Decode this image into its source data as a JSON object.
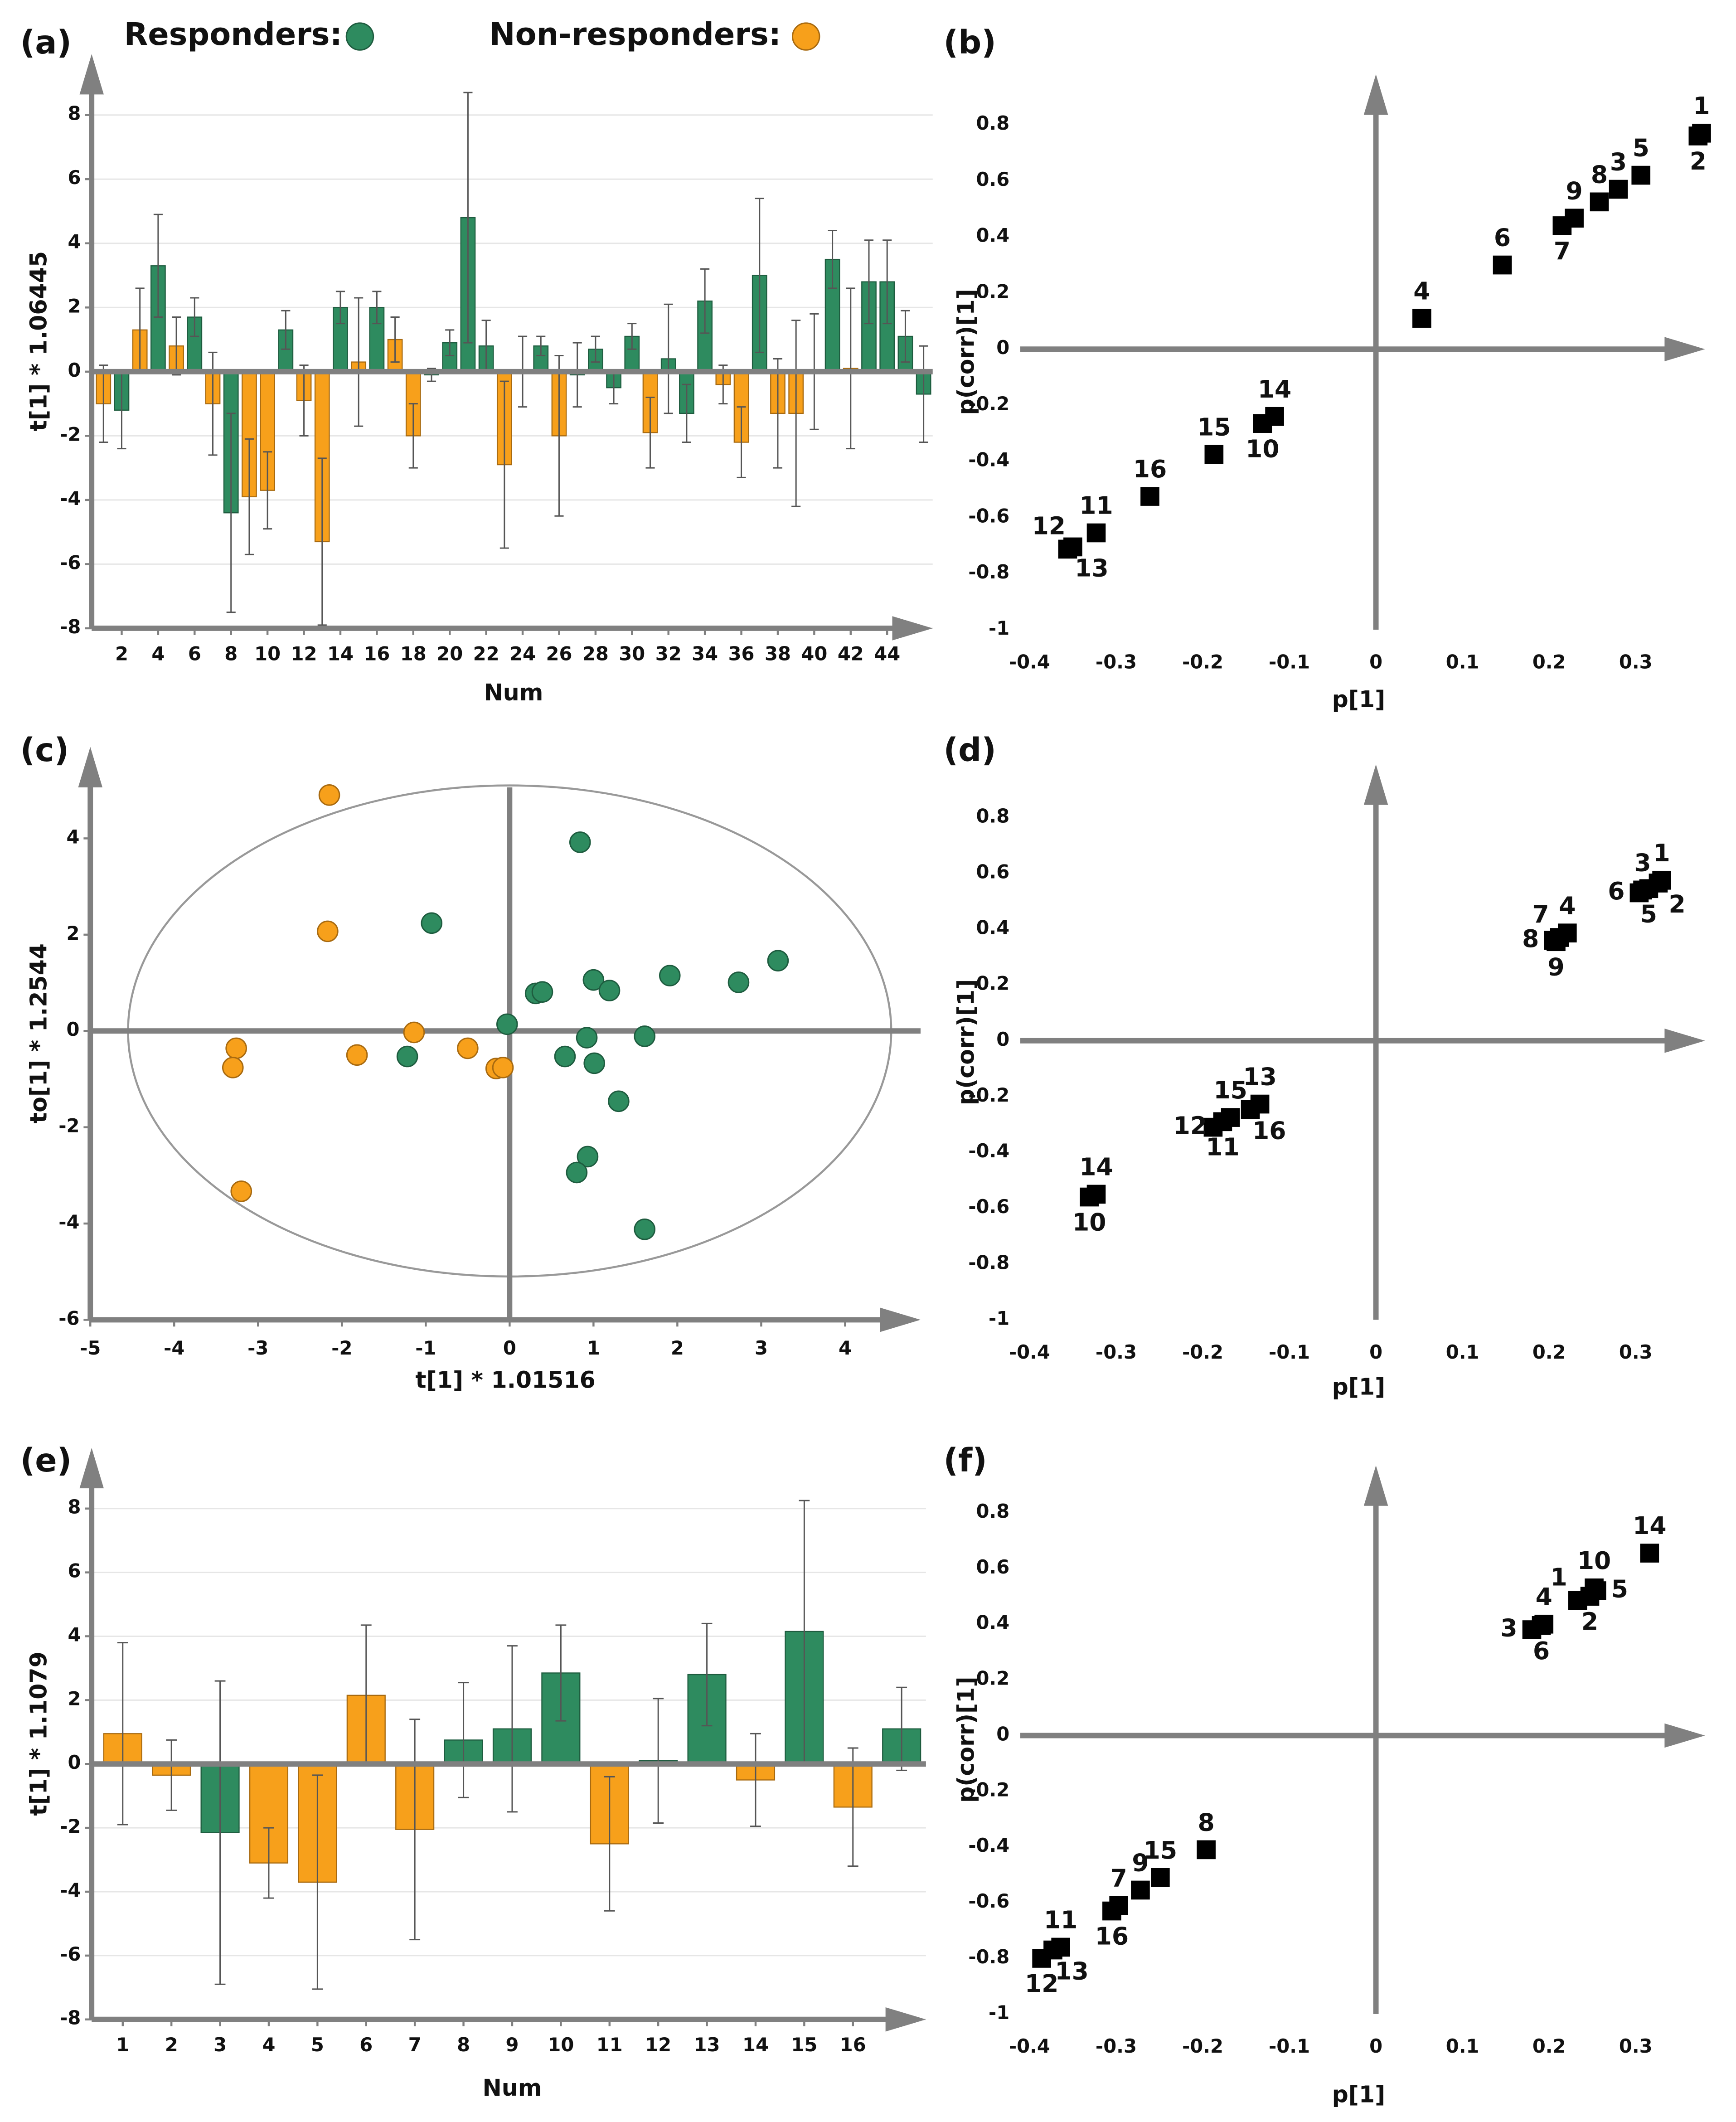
{
  "legend": [
    {
      "name": "Responders:",
      "color": "#2e8b5f"
    },
    {
      "name": "Non-responders:",
      "color": "#f7a01b"
    }
  ],
  "chart_data": [
    {
      "type": "bar",
      "panel_label": "(a)",
      "x_label": "Num",
      "y_label": "t[1] * 1.06445",
      "categories": [
        null,
        "2",
        null,
        "4",
        null,
        "6",
        null,
        "8",
        null,
        "10",
        null,
        "12",
        null,
        "14",
        null,
        "16",
        null,
        "18",
        null,
        "20",
        null,
        "22",
        null,
        "24",
        null,
        "26",
        null,
        "28",
        null,
        "30",
        null,
        "32",
        null,
        "34",
        null,
        "36",
        null,
        "38",
        null,
        "40",
        null,
        "42",
        null,
        "44",
        null,
        null
      ],
      "values": [
        -1.0,
        -1.2,
        1.3,
        3.3,
        0.8,
        1.7,
        -1.0,
        -4.4,
        -3.9,
        -3.7,
        1.3,
        -0.9,
        -5.3,
        2.0,
        0.3,
        2.0,
        1.0,
        -2.0,
        -0.1,
        0.9,
        4.8,
        0.8,
        -2.9,
        0.0,
        0.8,
        -2.0,
        -0.1,
        0.7,
        -0.5,
        1.1,
        -1.9,
        0.4,
        -1.3,
        2.2,
        -0.4,
        -2.2,
        3.0,
        -1.3,
        -1.3,
        0.0,
        3.5,
        0.1,
        2.8,
        2.8,
        1.1,
        -0.7
      ],
      "errors": [
        1.2,
        1.2,
        1.3,
        1.6,
        0.9,
        0.6,
        1.6,
        3.1,
        1.8,
        1.2,
        0.6,
        1.1,
        2.6,
        0.5,
        2.0,
        0.5,
        0.7,
        1.0,
        0.2,
        0.4,
        3.9,
        0.8,
        2.6,
        1.1,
        0.3,
        2.5,
        1.0,
        0.4,
        0.5,
        0.4,
        1.1,
        1.7,
        0.9,
        1.0,
        0.6,
        1.1,
        2.4,
        1.7,
        2.9,
        1.8,
        0.9,
        2.5,
        1.3,
        1.3,
        0.8,
        1.5
      ],
      "groups": [
        1,
        0,
        1,
        0,
        1,
        0,
        1,
        0,
        1,
        1,
        0,
        1,
        1,
        0,
        1,
        0,
        1,
        1,
        0,
        0,
        0,
        0,
        1,
        0,
        0,
        1,
        0,
        0,
        0,
        0,
        1,
        0,
        0,
        0,
        1,
        1,
        0,
        1,
        1,
        0,
        0,
        1,
        0,
        0,
        0,
        0
      ],
      "ylim": [
        -8,
        9.9
      ],
      "yticks": [
        -8,
        -6,
        -4,
        -2,
        0,
        2,
        4,
        6,
        8
      ],
      "grid": true
    },
    {
      "type": "scatter",
      "marker": "square",
      "color": "#000000",
      "panel_label": "(b)",
      "x_label": "p[1]",
      "y_label": "p(corr)[1]",
      "x": [
        0.376,
        0.372,
        0.28,
        0.053,
        0.306,
        0.146,
        0.215,
        0.258,
        0.229,
        -0.131,
        -0.323,
        -0.356,
        -0.35,
        -0.117,
        -0.187,
        -0.261
      ],
      "values": [
        0.77,
        0.76,
        0.57,
        0.11,
        0.62,
        0.3,
        0.44,
        0.525,
        0.467,
        -0.265,
        -0.655,
        -0.713,
        -0.705,
        -0.24,
        -0.375,
        -0.525
      ],
      "labels": [
        "1",
        "2",
        "3",
        "4",
        "5",
        "6",
        "7",
        "8",
        "9",
        "10",
        "11",
        "12",
        "13",
        "14",
        "15",
        "16"
      ],
      "label_positions": [
        "above",
        "below",
        "above",
        "above",
        "above",
        "above",
        "below",
        "above",
        "above",
        "below",
        "above",
        "above-left",
        "below-right",
        "above",
        "above",
        "above"
      ],
      "xlim": [
        -0.42,
        0.38
      ],
      "xticks": [
        -0.4,
        -0.3,
        -0.2,
        -0.1,
        0,
        0.1,
        0.2,
        0.3
      ],
      "ylim": [
        -1,
        0.98
      ],
      "yticks": [
        -1,
        -0.8,
        -0.6,
        -0.4,
        -0.2,
        0,
        0.2,
        0.4,
        0.6,
        0.8
      ],
      "grid": false
    },
    {
      "type": "scores",
      "panel_label": "(c)",
      "x_label": "t[1] * 1.01516",
      "y_label": "to[1] * 1.2544",
      "x": [
        -2.15,
        -2.17,
        -3.26,
        -3.3,
        -3.2,
        -1.82,
        -1.14,
        -0.5,
        -0.16,
        -0.08,
        0.84,
        -0.93,
        -1.22,
        -0.03,
        0.31,
        0.39,
        1.0,
        1.19,
        1.91,
        2.73,
        3.2,
        0.92,
        0.66,
        1.01,
        1.61,
        1.3,
        0.93,
        0.8,
        1.61
      ],
      "values": [
        4.9,
        2.07,
        -0.36,
        -0.76,
        -3.33,
        -0.5,
        -0.03,
        -0.36,
        -0.78,
        -0.76,
        3.92,
        2.24,
        -0.53,
        0.14,
        0.78,
        0.81,
        1.06,
        0.84,
        1.15,
        1.01,
        1.46,
        -0.14,
        -0.53,
        -0.67,
        -0.11,
        -1.46,
        -2.61,
        -2.94,
        -4.12
      ],
      "groups": [
        1,
        1,
        1,
        1,
        1,
        1,
        1,
        1,
        1,
        1,
        0,
        0,
        0,
        0,
        0,
        0,
        0,
        0,
        0,
        0,
        0,
        0,
        0,
        0,
        0,
        0,
        0,
        0,
        0
      ],
      "ellipse": {
        "rx": 4.55,
        "ry": 5.1
      },
      "xlim": [
        -5,
        4.9
      ],
      "xticks": [
        -5,
        -4,
        -3,
        -2,
        -1,
        0,
        1,
        2,
        3,
        4
      ],
      "ylim": [
        -6,
        5.9
      ],
      "yticks": [
        -6,
        -4,
        -2,
        0,
        2,
        4
      ],
      "grid": false
    },
    {
      "type": "scatter",
      "marker": "square",
      "color": "#000000",
      "panel_label": "(d)",
      "x_label": "p[1]",
      "y_label": "p(corr)[1]",
      "x": [
        0.33,
        0.326,
        0.308,
        0.221,
        0.315,
        0.304,
        0.212,
        0.205,
        0.208,
        -0.331,
        -0.177,
        -0.188,
        -0.134,
        -0.323,
        -0.168,
        -0.145
      ],
      "values": [
        0.575,
        0.565,
        0.54,
        0.386,
        0.545,
        0.53,
        0.37,
        0.36,
        0.355,
        -0.56,
        -0.29,
        -0.31,
        -0.227,
        -0.55,
        -0.275,
        -0.246
      ],
      "labels": [
        "1",
        "2",
        "3",
        "4",
        "5",
        "6",
        "7",
        "8",
        "9",
        "10",
        "11",
        "12",
        "13",
        "14",
        "15",
        "16"
      ],
      "label_positions": [
        "above",
        "below-right",
        "above",
        "above",
        "below",
        "left",
        "above-left",
        "left",
        "below",
        "below",
        "below",
        "left",
        "above",
        "above",
        "above",
        "below-right"
      ],
      "xlim": [
        -0.42,
        0.38
      ],
      "xticks": [
        -0.4,
        -0.3,
        -0.2,
        -0.1,
        0,
        0.1,
        0.2,
        0.3
      ],
      "ylim": [
        -1,
        0.99
      ],
      "yticks": [
        -1,
        -0.8,
        -0.6,
        -0.4,
        -0.2,
        0,
        0.2,
        0.4,
        0.6,
        0.8
      ],
      "grid": false
    },
    {
      "type": "bar",
      "panel_label": "(e)",
      "x_label": "Num",
      "y_label": "t[1] * 1.1079",
      "categories": [
        "1",
        "2",
        "3",
        "4",
        "5",
        "6",
        "7",
        "8",
        "9",
        "10",
        "11",
        "12",
        "13",
        "14",
        "15",
        "16",
        null
      ],
      "values": [
        0.95,
        -0.35,
        -2.15,
        -3.1,
        -3.7,
        2.15,
        -2.05,
        0.75,
        1.1,
        2.85,
        -2.5,
        0.1,
        2.8,
        -0.5,
        4.15,
        -1.35,
        1.1
      ],
      "errors": [
        2.85,
        1.1,
        4.75,
        1.1,
        3.35,
        2.2,
        3.45,
        1.8,
        2.6,
        1.5,
        2.1,
        1.95,
        1.6,
        1.45,
        4.1,
        1.85,
        1.3
      ],
      "groups": [
        1,
        1,
        0,
        1,
        1,
        1,
        1,
        0,
        0,
        0,
        1,
        0,
        0,
        1,
        0,
        1,
        0
      ],
      "ylim": [
        -8,
        9.9
      ],
      "yticks": [
        -8,
        -6,
        -4,
        -2,
        0,
        2,
        4,
        6,
        8
      ],
      "grid": true
    },
    {
      "type": "scatter",
      "marker": "square",
      "color": "#000000",
      "panel_label": "(f)",
      "x_label": "p[1]",
      "y_label": "p(corr)[1]",
      "x": [
        0.233,
        0.247,
        0.18,
        0.194,
        0.255,
        0.191,
        -0.297,
        -0.196,
        -0.272,
        0.252,
        -0.364,
        -0.386,
        -0.373,
        0.316,
        -0.249,
        -0.305
      ],
      "values": [
        0.485,
        0.5,
        0.38,
        0.4,
        0.52,
        0.395,
        -0.61,
        -0.41,
        -0.555,
        0.53,
        -0.76,
        -0.8,
        -0.77,
        0.655,
        -0.51,
        -0.63
      ],
      "labels": [
        "1",
        "2",
        "3",
        "4",
        "5",
        "6",
        "7",
        "8",
        "9",
        "10",
        "11",
        "12",
        "13",
        "14",
        "15",
        "16"
      ],
      "label_positions": [
        "above-left",
        "below",
        "left",
        "above",
        "right",
        "below",
        "above",
        "above",
        "above",
        "above",
        "above",
        "below",
        "below-right",
        "above",
        "above",
        "below"
      ],
      "xlim": [
        -0.42,
        0.38
      ],
      "xticks": [
        -0.4,
        -0.3,
        -0.2,
        -0.1,
        0,
        0.1,
        0.2,
        0.3
      ],
      "ylim": [
        -1,
        0.97
      ],
      "yticks": [
        -1,
        -0.8,
        -0.6,
        -0.4,
        -0.2,
        0,
        0.2,
        0.4,
        0.6,
        0.8
      ],
      "grid": false
    }
  ]
}
